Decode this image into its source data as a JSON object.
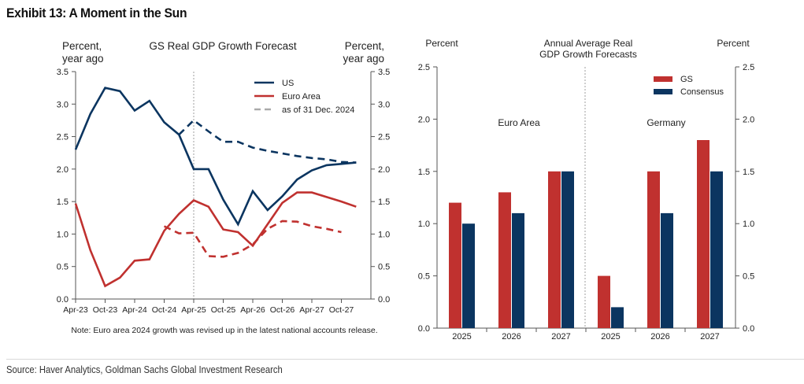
{
  "title": "Exhibit 13: A Moment in the Sun",
  "source": "Source: Haver Analytics, Goldman Sachs Global Investment Research",
  "colors": {
    "us": "#0b3560",
    "euro": "#c0312f",
    "gs": "#c0312f",
    "consensus": "#0b3560",
    "axis": "#555555",
    "divider": "#888888",
    "legend_dash": "#aaaaaa"
  },
  "chart_data": [
    {
      "type": "line",
      "title": "GS Real GDP Growth Forecast",
      "ylabel_left": [
        "Percent,",
        "year ago"
      ],
      "ylabel_right": [
        "Percent,",
        "year ago"
      ],
      "ylim": [
        0,
        3.5
      ],
      "yticks": [
        "0.0",
        "0.5",
        "1.0",
        "1.5",
        "2.0",
        "2.5",
        "3.0",
        "3.5"
      ],
      "xtick_labels": [
        "Apr-23",
        "Oct-23",
        "Apr-24",
        "Oct-24",
        "Apr-25",
        "Oct-25",
        "Apr-26",
        "Oct-26",
        "Apr-27",
        "Oct-27"
      ],
      "x_quarters": [
        "Apr-23",
        "Jul-23",
        "Oct-23",
        "Jan-24",
        "Apr-24",
        "Jul-24",
        "Oct-24",
        "Jan-25",
        "Apr-25",
        "Jul-25",
        "Oct-25",
        "Jan-26",
        "Apr-26",
        "Jul-26",
        "Oct-26",
        "Jan-27",
        "Apr-27",
        "Jul-27",
        "Oct-27",
        "Jan-28"
      ],
      "vline_at": "Apr-25",
      "legend": [
        {
          "label": "US",
          "style": "solid",
          "color_key": "us"
        },
        {
          "label": "Euro Area",
          "style": "solid",
          "color_key": "euro"
        },
        {
          "label": "as of 31 Dec. 2024",
          "style": "dashed",
          "color_key": "legend_dash"
        }
      ],
      "legend_position": "top-right",
      "series": [
        {
          "name": "US",
          "style": "solid",
          "color_key": "us",
          "start_index": 0,
          "values": [
            2.3,
            2.85,
            3.25,
            3.2,
            2.9,
            3.05,
            2.72,
            2.53,
            2.0,
            2.0,
            1.53,
            1.15,
            1.66,
            1.37,
            1.58,
            1.84,
            1.98,
            2.06,
            2.08,
            2.1
          ]
        },
        {
          "name": "US (as of 31 Dec. 2024)",
          "style": "dashed",
          "color_key": "us",
          "start_index": 7,
          "values": [
            2.53,
            2.75,
            2.58,
            2.42,
            2.42,
            2.33,
            2.28,
            2.24,
            2.2,
            2.17,
            2.15,
            2.11,
            2.1
          ]
        },
        {
          "name": "Euro Area",
          "style": "solid",
          "color_key": "euro",
          "start_index": 0,
          "values": [
            1.47,
            0.75,
            0.2,
            0.33,
            0.59,
            0.61,
            1.05,
            1.31,
            1.52,
            1.42,
            1.07,
            1.03,
            0.82,
            1.15,
            1.48,
            1.64,
            1.64,
            1.57,
            1.5,
            1.42
          ]
        },
        {
          "name": "Euro Area (as of 31 Dec. 2024)",
          "style": "dashed",
          "color_key": "euro",
          "start_index": 6,
          "values": [
            1.12,
            1.01,
            1.02,
            0.66,
            0.65,
            0.71,
            0.84,
            1.08,
            1.2,
            1.19,
            1.12,
            1.08,
            1.03
          ]
        }
      ],
      "note": "Note: Euro area 2024 growth was revised up in the latest national accounts release."
    },
    {
      "type": "bar",
      "title": [
        "Annual Average Real",
        "GDP Growth Forecasts"
      ],
      "ylabel_left": "Percent",
      "ylabel_right": "Percent",
      "ylim": [
        0,
        2.5
      ],
      "yticks": [
        "0.0",
        "0.5",
        "1.0",
        "1.5",
        "2.0",
        "2.5"
      ],
      "legend": [
        {
          "label": "GS",
          "color_key": "gs"
        },
        {
          "label": "Consensus",
          "color_key": "consensus"
        }
      ],
      "legend_position": "top-right",
      "groups": [
        {
          "name": "Euro Area",
          "categories": [
            "2025",
            "2026",
            "2027"
          ],
          "series": [
            {
              "name": "GS",
              "values": [
                1.2,
                1.3,
                1.5
              ]
            },
            {
              "name": "Consensus",
              "values": [
                1.0,
                1.1,
                1.5
              ]
            }
          ]
        },
        {
          "name": "Germany",
          "categories": [
            "2025",
            "2026",
            "2027"
          ],
          "series": [
            {
              "name": "GS",
              "values": [
                0.5,
                1.5,
                1.8
              ]
            },
            {
              "name": "Consensus",
              "values": [
                0.2,
                1.1,
                1.5
              ]
            }
          ]
        }
      ]
    }
  ]
}
